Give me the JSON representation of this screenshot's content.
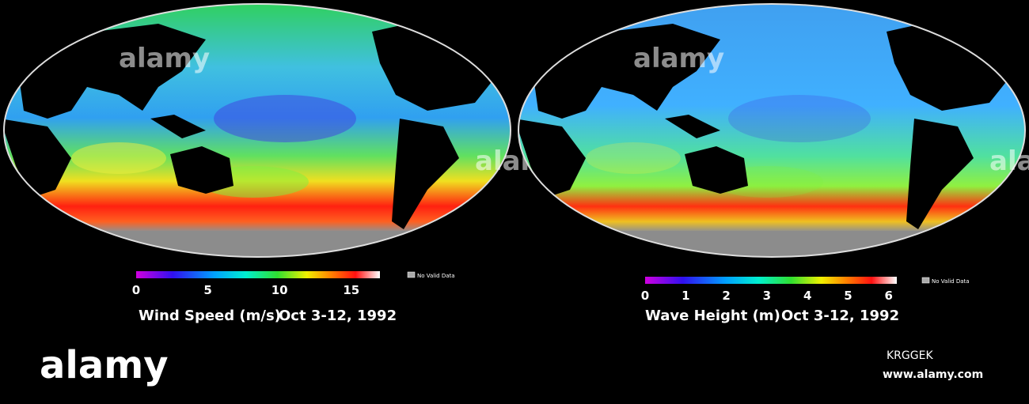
{
  "panels": [
    {
      "colorbar": {
        "range": [
          0,
          17
        ],
        "ticks": [
          0,
          5,
          10,
          15
        ]
      },
      "no_data_label": "No Valid Data",
      "quantity": "Wind Speed (m/s)",
      "date": "Oct 3-12, 1992"
    },
    {
      "colorbar": {
        "range": [
          0,
          6.2
        ],
        "ticks": [
          0,
          1,
          2,
          3,
          4,
          5,
          6
        ]
      },
      "no_data_label": "No Valid Data",
      "quantity": "Wave Height (m)",
      "date": "Oct 3-12, 1992"
    }
  ],
  "watermark": "alamy",
  "footer": {
    "logo": "alamy",
    "image_id": "KRGGEK",
    "url": "www.alamy.com"
  }
}
